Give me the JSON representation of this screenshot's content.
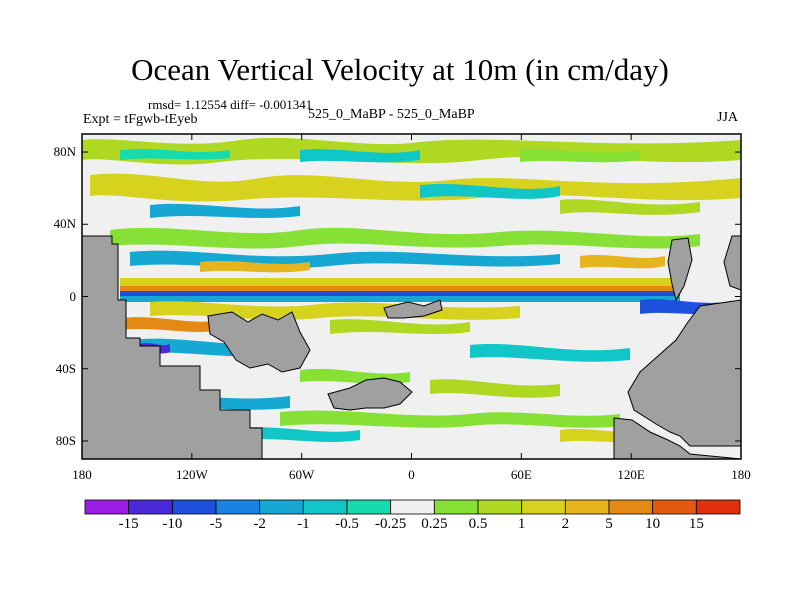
{
  "title": "Ocean Vertical Velocity at 10m (in cm/day)",
  "stats": "rmsd= 1.12554  diff= -0.001341",
  "experiment": "Expt = tFgwb-tEyeb",
  "center_label": "525_0_MaBP - 525_0_MaBP",
  "season": "JJA",
  "chart_data": {
    "type": "heatmap",
    "title": "Ocean Vertical Velocity at 10m (in cm/day)",
    "units": "cm/day",
    "lat_ticks": [
      "80N",
      "40N",
      "0",
      "40S",
      "80S"
    ],
    "lon_ticks": [
      "180",
      "120W",
      "60W",
      "0",
      "60E",
      "120E",
      "180"
    ],
    "lat_range": [
      -90,
      90
    ],
    "lon_range": [
      -180,
      180
    ],
    "colorbar_levels": [
      "-15",
      "-10",
      "-5",
      "-2",
      "-1",
      "-0.5",
      "-0.25",
      "0.25",
      "0.5",
      "1",
      "2",
      "5",
      "10",
      "15"
    ],
    "colorbar_colors": [
      "#9a1ee6",
      "#4a2ad8",
      "#1e50dc",
      "#1a82e0",
      "#16a8d2",
      "#10c6c6",
      "#14dcae",
      "#f0f0f0",
      "#86e036",
      "#aed822",
      "#d6d21e",
      "#e6b41c",
      "#e48a14",
      "#e25a10",
      "#e03010"
    ],
    "land_color": "#a0a0a0"
  }
}
